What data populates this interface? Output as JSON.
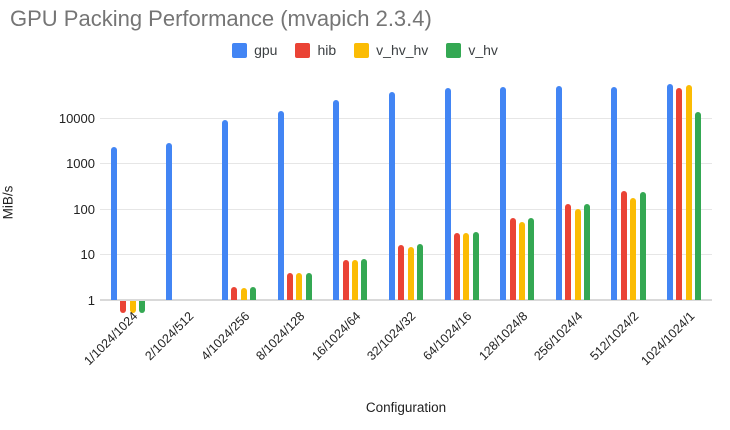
{
  "chart_data": {
    "type": "bar",
    "title": "GPU Packing Performance (mvapich 2.3.4)",
    "xlabel": "Configuration",
    "ylabel": "MiB/s",
    "y_scale": "log",
    "y_ticks": [
      1,
      10,
      100,
      1000,
      10000
    ],
    "ylim": [
      0.45,
      70000
    ],
    "grid": "horizontal",
    "legend_position": "top",
    "categories": [
      "1/1024/1024",
      "2/1024/512",
      "4/1024/256",
      "8/1024/128",
      "16/1024/64",
      "32/1024/32",
      "64/1024/16",
      "128/1024/8",
      "256/1024/4",
      "512/1024/2",
      "1024/1024/1"
    ],
    "series": [
      {
        "name": "gpu",
        "color": "#4285F4",
        "values": [
          2300,
          2800,
          8900,
          13700,
          24500,
          36000,
          44000,
          46400,
          50400,
          46400,
          55000
        ]
      },
      {
        "name": "hib",
        "color": "#EA4335",
        "values": [
          0.55,
          null,
          1.9,
          3.9,
          7.6,
          16,
          30,
          62,
          125,
          240,
          45000
        ]
      },
      {
        "name": "v_hv_hv",
        "color": "#FBBC04",
        "values": [
          0.55,
          null,
          1.8,
          3.9,
          7.6,
          14.5,
          29,
          52,
          100,
          170,
          53000
        ]
      },
      {
        "name": "v_hv",
        "color": "#34A853",
        "values": [
          0.55,
          null,
          1.95,
          3.9,
          7.8,
          16.5,
          31,
          64,
          125,
          230,
          13500
        ]
      }
    ]
  }
}
